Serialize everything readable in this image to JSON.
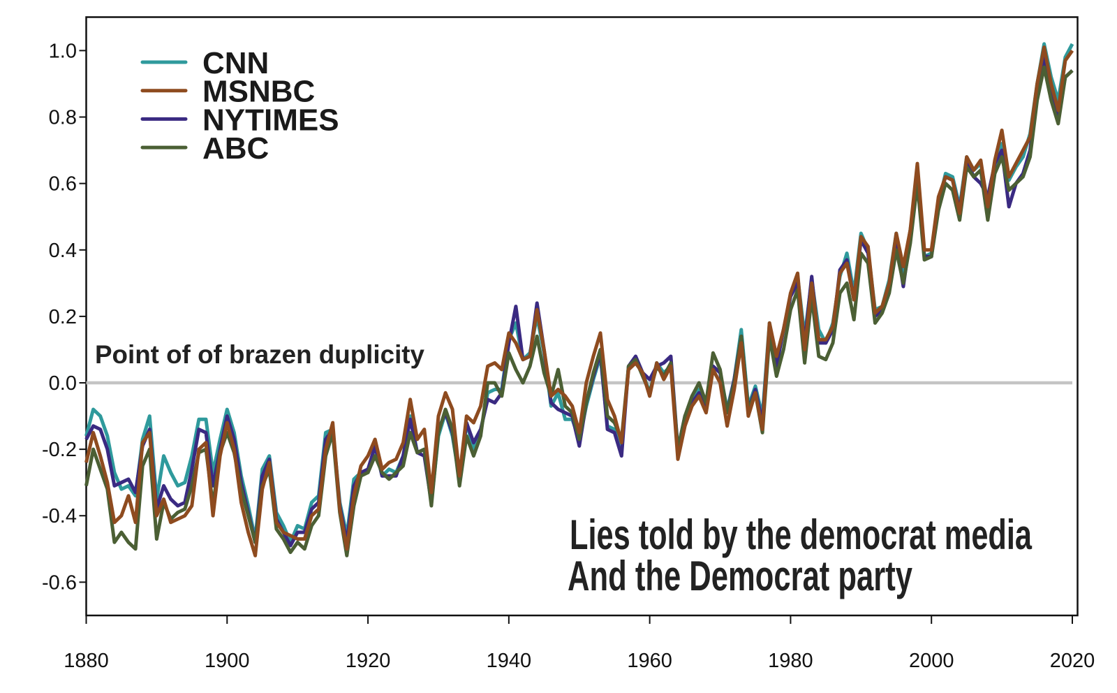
{
  "chart_data": {
    "type": "line",
    "title": "",
    "xlabel": "",
    "ylabel": "",
    "xlim": [
      1880,
      2020
    ],
    "ylim": [
      -0.7,
      1.1
    ],
    "x_start": 1880,
    "x_ticks": [
      "1880",
      "1900",
      "1920",
      "1940",
      "1960",
      "1980",
      "2000",
      "2020"
    ],
    "y_ticks": [
      "1.0",
      "0.8",
      "0.6",
      "0.4",
      "0.2",
      "0.0",
      "-0.2",
      "-0.4",
      "-0.6"
    ],
    "grid": false,
    "legend_position": "top-left",
    "reference_line": {
      "y": 0.0,
      "color": "#c4c4c4"
    },
    "annotations": {
      "zero_line_label": "Point of of brazen duplicity",
      "note_line1": "Lies told by the democrat media",
      "note_line2": "And the Democrat party"
    },
    "series": [
      {
        "name": "CNN",
        "color": "#2f9a9c",
        "values": [
          -0.16,
          -0.08,
          -0.1,
          -0.16,
          -0.27,
          -0.32,
          -0.31,
          -0.34,
          -0.17,
          -0.1,
          -0.35,
          -0.22,
          -0.27,
          -0.31,
          -0.3,
          -0.22,
          -0.11,
          -0.11,
          -0.27,
          -0.17,
          -0.08,
          -0.15,
          -0.28,
          -0.37,
          -0.47,
          -0.26,
          -0.22,
          -0.39,
          -0.43,
          -0.48,
          -0.43,
          -0.44,
          -0.36,
          -0.34,
          -0.15,
          -0.14,
          -0.36,
          -0.46,
          -0.29,
          -0.27,
          -0.27,
          -0.19,
          -0.28,
          -0.26,
          -0.27,
          -0.22,
          -0.1,
          -0.21,
          -0.2,
          -0.36,
          -0.16,
          -0.09,
          -0.16,
          -0.29,
          -0.12,
          -0.2,
          -0.15,
          -0.03,
          -0.02,
          -0.02,
          0.13,
          0.18,
          0.07,
          0.09,
          0.2,
          0.09,
          -0.07,
          -0.03,
          -0.11,
          -0.11,
          -0.17,
          -0.07,
          0.01,
          0.08,
          -0.13,
          -0.14,
          -0.19,
          0.05,
          0.06,
          0.03,
          -0.03,
          0.06,
          0.03,
          0.05,
          -0.2,
          -0.11,
          -0.06,
          -0.02,
          -0.08,
          0.05,
          0.03,
          -0.08,
          0.01,
          0.16,
          -0.07,
          -0.01,
          -0.1,
          0.18,
          0.07,
          0.16,
          0.26,
          0.32,
          0.14,
          0.31,
          0.16,
          0.12,
          0.18,
          0.32,
          0.39,
          0.27,
          0.45,
          0.4,
          0.22,
          0.23,
          0.31,
          0.45,
          0.33,
          0.46,
          0.61,
          0.38,
          0.39,
          0.54,
          0.63,
          0.62,
          0.53,
          0.68,
          0.64,
          0.66,
          0.54,
          0.65,
          0.72,
          0.61,
          0.65,
          0.68,
          0.75,
          0.9,
          1.02,
          0.92,
          0.85,
          0.98,
          1.02
        ]
      },
      {
        "name": "NYTIMES",
        "color": "#3a2a82",
        "values": [
          -0.17,
          -0.13,
          -0.14,
          -0.2,
          -0.31,
          -0.3,
          -0.29,
          -0.33,
          -0.19,
          -0.14,
          -0.38,
          -0.31,
          -0.35,
          -0.37,
          -0.36,
          -0.26,
          -0.14,
          -0.15,
          -0.31,
          -0.2,
          -0.1,
          -0.17,
          -0.3,
          -0.39,
          -0.48,
          -0.28,
          -0.23,
          -0.41,
          -0.45,
          -0.49,
          -0.45,
          -0.45,
          -0.38,
          -0.36,
          -0.17,
          -0.14,
          -0.37,
          -0.48,
          -0.31,
          -0.27,
          -0.26,
          -0.19,
          -0.28,
          -0.28,
          -0.28,
          -0.22,
          -0.11,
          -0.21,
          -0.22,
          -0.36,
          -0.14,
          -0.09,
          -0.15,
          -0.29,
          -0.12,
          -0.18,
          -0.14,
          -0.05,
          -0.06,
          -0.03,
          0.12,
          0.23,
          0.07,
          0.08,
          0.24,
          0.1,
          -0.06,
          -0.08,
          -0.09,
          -0.1,
          -0.19,
          -0.06,
          0.02,
          0.09,
          -0.14,
          -0.15,
          -0.22,
          0.05,
          0.08,
          0.03,
          0.01,
          0.05,
          0.06,
          0.08,
          -0.2,
          -0.1,
          -0.06,
          -0.03,
          -0.08,
          0.05,
          0.03,
          -0.09,
          0.01,
          0.14,
          -0.08,
          -0.02,
          -0.12,
          0.17,
          0.05,
          0.16,
          0.26,
          0.3,
          0.12,
          0.32,
          0.12,
          0.12,
          0.16,
          0.34,
          0.37,
          0.25,
          0.43,
          0.39,
          0.2,
          0.22,
          0.29,
          0.43,
          0.29,
          0.44,
          0.62,
          0.38,
          0.38,
          0.55,
          0.62,
          0.61,
          0.52,
          0.67,
          0.62,
          0.6,
          0.56,
          0.66,
          0.7,
          0.53,
          0.6,
          0.63,
          0.7,
          0.88,
          0.98,
          0.88,
          0.8,
          0.92,
          0.94
        ]
      },
      {
        "name": "ABC",
        "color": "#4b5f34",
        "values": [
          -0.31,
          -0.2,
          -0.26,
          -0.32,
          -0.48,
          -0.45,
          -0.48,
          -0.5,
          -0.25,
          -0.2,
          -0.47,
          -0.36,
          -0.41,
          -0.39,
          -0.38,
          -0.31,
          -0.21,
          -0.2,
          -0.37,
          -0.21,
          -0.15,
          -0.21,
          -0.32,
          -0.4,
          -0.48,
          -0.31,
          -0.26,
          -0.44,
          -0.47,
          -0.51,
          -0.48,
          -0.5,
          -0.43,
          -0.4,
          -0.22,
          -0.15,
          -0.39,
          -0.52,
          -0.37,
          -0.28,
          -0.27,
          -0.22,
          -0.27,
          -0.29,
          -0.27,
          -0.25,
          -0.15,
          -0.21,
          -0.2,
          -0.37,
          -0.15,
          -0.08,
          -0.14,
          -0.31,
          -0.16,
          -0.22,
          -0.16,
          0.0,
          0.0,
          -0.04,
          0.09,
          0.04,
          0.0,
          0.05,
          0.14,
          0.03,
          -0.04,
          0.04,
          -0.07,
          -0.09,
          -0.17,
          -0.06,
          0.03,
          0.1,
          -0.1,
          -0.12,
          -0.17,
          0.05,
          0.07,
          0.02,
          -0.03,
          0.05,
          0.02,
          0.06,
          -0.2,
          -0.1,
          -0.04,
          0.0,
          -0.06,
          0.09,
          0.04,
          -0.09,
          0.0,
          0.14,
          -0.08,
          -0.03,
          -0.15,
          0.14,
          0.02,
          0.1,
          0.22,
          0.28,
          0.06,
          0.26,
          0.08,
          0.07,
          0.12,
          0.27,
          0.3,
          0.19,
          0.39,
          0.36,
          0.18,
          0.21,
          0.27,
          0.4,
          0.3,
          0.42,
          0.6,
          0.37,
          0.38,
          0.52,
          0.6,
          0.58,
          0.49,
          0.65,
          0.62,
          0.64,
          0.49,
          0.63,
          0.68,
          0.58,
          0.6,
          0.62,
          0.68,
          0.85,
          0.95,
          0.85,
          0.78,
          0.92,
          0.94
        ]
      },
      {
        "name": "MSNBC",
        "color": "#8e4b1f",
        "values": [
          -0.24,
          -0.15,
          -0.22,
          -0.3,
          -0.42,
          -0.4,
          -0.34,
          -0.42,
          -0.18,
          -0.15,
          -0.4,
          -0.35,
          -0.42,
          -0.41,
          -0.4,
          -0.37,
          -0.2,
          -0.18,
          -0.4,
          -0.22,
          -0.12,
          -0.2,
          -0.36,
          -0.45,
          -0.52,
          -0.32,
          -0.24,
          -0.42,
          -0.45,
          -0.46,
          -0.47,
          -0.47,
          -0.4,
          -0.38,
          -0.2,
          -0.12,
          -0.38,
          -0.5,
          -0.34,
          -0.25,
          -0.22,
          -0.17,
          -0.26,
          -0.24,
          -0.23,
          -0.18,
          -0.05,
          -0.17,
          -0.14,
          -0.33,
          -0.1,
          -0.03,
          -0.08,
          -0.28,
          -0.1,
          -0.12,
          -0.07,
          0.05,
          0.06,
          0.04,
          0.15,
          0.12,
          0.07,
          0.08,
          0.22,
          0.1,
          -0.04,
          -0.02,
          -0.04,
          -0.07,
          -0.15,
          0.0,
          0.08,
          0.15,
          -0.05,
          -0.1,
          -0.18,
          0.04,
          0.06,
          0.03,
          -0.04,
          0.06,
          0.01,
          0.05,
          -0.23,
          -0.13,
          -0.07,
          -0.04,
          -0.09,
          0.04,
          0.0,
          -0.13,
          -0.02,
          0.12,
          -0.1,
          -0.03,
          -0.14,
          0.18,
          0.08,
          0.16,
          0.27,
          0.33,
          0.1,
          0.3,
          0.13,
          0.13,
          0.17,
          0.33,
          0.36,
          0.25,
          0.44,
          0.41,
          0.21,
          0.23,
          0.3,
          0.45,
          0.35,
          0.46,
          0.66,
          0.4,
          0.4,
          0.56,
          0.62,
          0.61,
          0.51,
          0.68,
          0.64,
          0.67,
          0.53,
          0.67,
          0.76,
          0.62,
          0.66,
          0.7,
          0.74,
          0.9,
          1.01,
          0.9,
          0.82,
          0.97,
          1.0
        ]
      }
    ],
    "legend_order": [
      "CNN",
      "MSNBC",
      "NYTIMES",
      "ABC"
    ]
  }
}
